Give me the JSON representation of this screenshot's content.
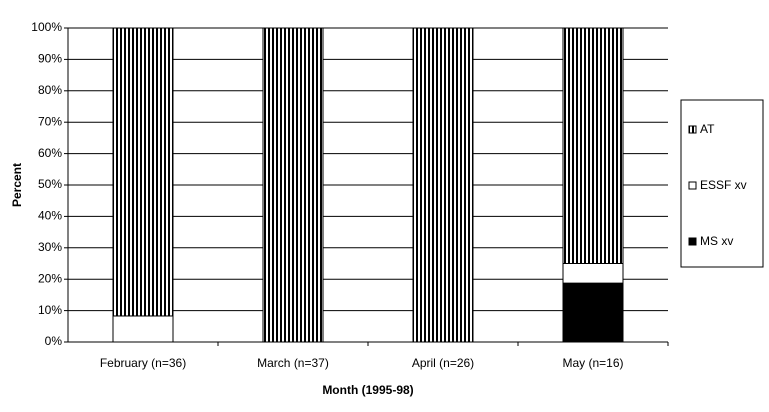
{
  "chart_data": {
    "type": "stacked-bar",
    "x_label": "Month (1995-98)",
    "y_label": "Percent",
    "categories": [
      "February (n=36)",
      "March (n=37)",
      "April (n=26)",
      "May (n=16)"
    ],
    "series": [
      {
        "name": "MS xv",
        "color": "#000000",
        "values": [
          0,
          0,
          0,
          18.75
        ]
      },
      {
        "name": "ESSF xv",
        "color": "#ffffff",
        "values": [
          8.3,
          0,
          0,
          6.25
        ]
      },
      {
        "name": "AT",
        "color": "#000000",
        "pattern": "vertical-stripes",
        "values": [
          91.7,
          100,
          100,
          75
        ]
      }
    ],
    "ylim": [
      0,
      100
    ],
    "yticks": [
      {
        "value": 0,
        "label": "0%"
      },
      {
        "value": 10,
        "label": "10%"
      },
      {
        "value": 20,
        "label": "20%"
      },
      {
        "value": 30,
        "label": "30%"
      },
      {
        "value": 40,
        "label": "40%"
      },
      {
        "value": 50,
        "label": "50%"
      },
      {
        "value": 60,
        "label": "60%"
      },
      {
        "value": 70,
        "label": "70%"
      },
      {
        "value": 80,
        "label": "80%"
      },
      {
        "value": 90,
        "label": "90%"
      },
      {
        "value": 100,
        "label": "100%"
      }
    ],
    "grid": true,
    "legend": "right"
  }
}
